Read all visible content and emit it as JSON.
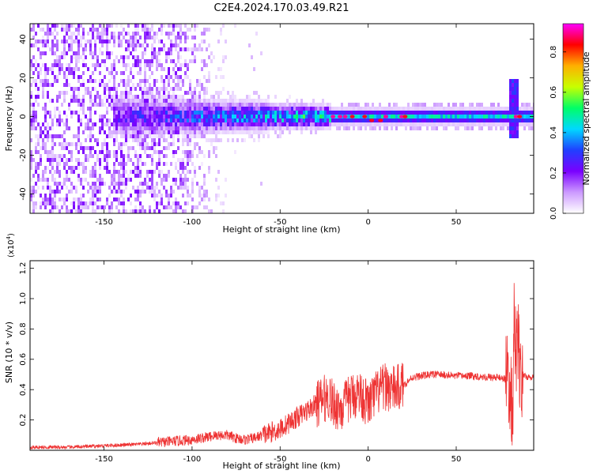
{
  "title": "C2E4.2024.170.03.49.R21",
  "colorbar": {
    "label": "Normalized spectral amplitude",
    "ticks": [
      "0.0",
      "0.2",
      "0.4",
      "0.6",
      "0.8"
    ],
    "tick_values": [
      0.0,
      0.2,
      0.4,
      0.6,
      0.8
    ],
    "range": [
      0,
      0.94
    ],
    "colors": [
      "#ffffff",
      "#cc99ff",
      "#7a00ff",
      "#2040ff",
      "#00d8ff",
      "#00ff66",
      "#c8ff00",
      "#ffb000",
      "#ff0000",
      "#ff00ff"
    ]
  },
  "chart_data": [
    {
      "type": "heatmap",
      "xlabel": "Height of straight line (km)",
      "ylabel": "Frequency (Hz)",
      "xlim": [
        -192,
        94
      ],
      "ylim": [
        -50,
        48
      ],
      "xticks": [
        -150,
        -100,
        -50,
        0,
        50
      ],
      "xtick_labels": [
        "-150",
        "-100",
        "-50",
        "0",
        "50"
      ],
      "yticks": [
        -40,
        -20,
        0,
        20,
        40
      ],
      "ytick_labels": [
        "-40",
        "-20",
        "0",
        "20",
        "40"
      ],
      "grid": false,
      "features": {
        "noise_region": {
          "x": [
            -192,
            -110
          ],
          "amplitude": 0.15
        },
        "broad_band": {
          "x": [
            -145,
            -22
          ],
          "halfwidth_hz": [
            8,
            4
          ],
          "amplitude": [
            0.2,
            0.45
          ]
        },
        "narrow_line": {
          "x": [
            -22,
            94
          ],
          "freq_hz": 0,
          "halfwidth_hz": 2.5,
          "amplitude": 0.45
        },
        "peaks": [
          {
            "x": -20,
            "y": 0,
            "amplitude": 0.9
          },
          {
            "x": -16,
            "y": 0,
            "amplitude": 0.9
          },
          {
            "x": -13,
            "y": 0,
            "amplitude": 0.9
          },
          {
            "x": -9,
            "y": 0,
            "amplitude": 0.85
          },
          {
            "x": -2,
            "y": 0,
            "amplitude": 0.85
          },
          {
            "x": 2,
            "y": -2,
            "amplitude": 0.85
          },
          {
            "x": 7,
            "y": -2,
            "amplitude": 0.85
          },
          {
            "x": 10,
            "y": 0,
            "amplitude": 0.9
          },
          {
            "x": 19,
            "y": 0,
            "amplitude": 0.9
          },
          {
            "x": 21,
            "y": 0,
            "amplitude": 0.85
          },
          {
            "x": 84,
            "y": 0,
            "amplitude": 0.9
          },
          {
            "x": 86,
            "y": 0,
            "amplitude": 0.85
          }
        ],
        "spike": {
          "x": 82,
          "y": [
            -12,
            20
          ],
          "amplitude": 0.3
        }
      }
    },
    {
      "type": "line",
      "xlabel": "Height of straight line (km)",
      "ylabel": "SNR (10 * v/v)",
      "yscale_label": "(x10",
      "yscale_exponent": "4",
      "yscale_close": ")",
      "xlim": [
        -192,
        94
      ],
      "ylim": [
        0.0,
        1.25
      ],
      "xticks": [
        -150,
        -100,
        -50,
        0,
        50
      ],
      "xtick_labels": [
        "-150",
        "-100",
        "-50",
        "0",
        "50"
      ],
      "yticks": [
        0.2,
        0.4,
        0.6,
        0.8,
        1.0,
        1.2
      ],
      "ytick_labels": [
        "0.2",
        "0.4",
        "0.6",
        "0.8",
        "1.0",
        "1.2"
      ],
      "grid": false,
      "color": "#ee3333",
      "series": [
        {
          "x": [
            -192,
            -180,
            -170,
            -160,
            -150,
            -140,
            -130,
            -120,
            -110,
            -100,
            -95,
            -90,
            -85,
            -80,
            -75,
            -70,
            -65,
            -60,
            -55,
            -50,
            -45,
            -40,
            -35,
            -30,
            -25,
            -22,
            -20,
            -15,
            -10,
            -5,
            0,
            5,
            10,
            15,
            20,
            25,
            30,
            35,
            40,
            50,
            60,
            70,
            75,
            78,
            80,
            81,
            82,
            83,
            84,
            85,
            86,
            88,
            90,
            94
          ],
          "y": [
            0.02,
            0.02,
            0.02,
            0.025,
            0.03,
            0.035,
            0.04,
            0.05,
            0.06,
            0.07,
            0.08,
            0.09,
            0.1,
            0.1,
            0.08,
            0.07,
            0.08,
            0.1,
            0.12,
            0.14,
            0.18,
            0.22,
            0.26,
            0.3,
            0.34,
            0.36,
            0.3,
            0.28,
            0.35,
            0.38,
            0.3,
            0.38,
            0.42,
            0.4,
            0.43,
            0.48,
            0.49,
            0.5,
            0.5,
            0.49,
            0.49,
            0.48,
            0.48,
            0.47,
            0.45,
            0.35,
            0.2,
            0.95,
            0.6,
            0.8,
            0.45,
            0.5,
            0.48,
            0.48
          ]
        }
      ]
    }
  ]
}
